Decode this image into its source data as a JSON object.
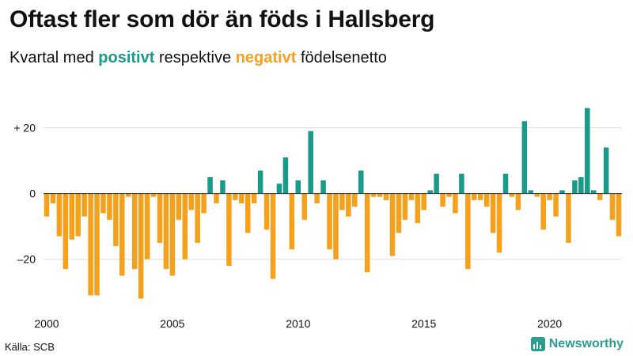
{
  "header": {
    "title": "Oftast fler som dör än föds i Hallsberg",
    "subtitle_prefix": "Kvartal med",
    "subtitle_positive": "positivt",
    "subtitle_middle": "respektive",
    "subtitle_negative": "negativt",
    "subtitle_suffix": "födelsenetto"
  },
  "footer": {
    "source": "Källa: SCB",
    "brand": "Newsworthy"
  },
  "colors": {
    "positive": "#1a9a8a",
    "negative": "#f5a11c",
    "brand": "#2a9d8f"
  },
  "chart_data": {
    "type": "bar",
    "title": "Oftast fler som dör än föds i Hallsberg",
    "subtitle": "Kvartal med positivt respektive negativt födelsenetto",
    "xlabel": "",
    "ylabel": "",
    "x_start_year": 2000,
    "periods_per_year": 4,
    "ylim": [
      -35,
      30
    ],
    "yticks": [
      20,
      0,
      -20
    ],
    "ytick_labels": [
      "+ 20",
      "0",
      "–20"
    ],
    "xticks": [
      2000,
      2005,
      2010,
      2015,
      2020
    ],
    "xtick_labels": [
      "2000",
      "2005",
      "2010",
      "2015",
      "2020"
    ],
    "values": [
      -7,
      -3,
      -13,
      -23,
      -14,
      -13,
      -7,
      -31,
      -31,
      -6,
      -8,
      -16,
      -25,
      -1,
      -23,
      -32,
      -20,
      -1,
      -15,
      -23,
      -25,
      -8,
      -20,
      -5,
      -15,
      -6,
      5,
      -3,
      4,
      -22,
      -2,
      -3,
      -12,
      -3,
      7,
      -11,
      -26,
      3,
      11,
      -17,
      4,
      -8,
      19,
      -3,
      4,
      -17,
      -20,
      -5,
      -7,
      -4,
      7,
      -24,
      -1,
      -1,
      -2,
      -19,
      -12,
      -8,
      -2,
      -9,
      -5,
      1,
      6,
      -4,
      -1,
      -6,
      6,
      -23,
      -2,
      -2,
      -4,
      -12,
      -18,
      6,
      -1,
      -5,
      22,
      1,
      -1,
      -11,
      -2,
      -7,
      1,
      -15,
      4,
      5,
      26,
      1,
      -2,
      14,
      -8,
      -13
    ]
  }
}
